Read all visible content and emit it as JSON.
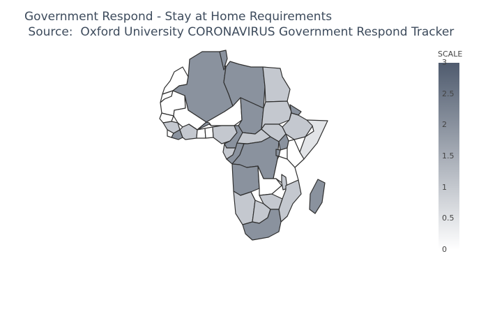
{
  "title": {
    "line1": "Government Respond - Stay at Home Requirements",
    "line2": " Source:  Oxford University CORONAVIRUS Government Respond Tracker"
  },
  "colorbar": {
    "title": "SCALE",
    "min": 0,
    "max": 3,
    "ticks": [
      "0",
      "0.5",
      "1",
      "1.5",
      "2",
      "2.5",
      "3"
    ],
    "color_low": "#ffffff",
    "color_high": "#4f5b6e"
  },
  "regions": [
    {
      "id": "morocco",
      "value": 0
    },
    {
      "id": "western-sahara",
      "value": 0
    },
    {
      "id": "algeria",
      "value": 2
    },
    {
      "id": "tunisia",
      "value": 2
    },
    {
      "id": "libya",
      "value": 2
    },
    {
      "id": "egypt",
      "value": 1
    },
    {
      "id": "mauritania",
      "value": 0
    },
    {
      "id": "mali",
      "value": 0
    },
    {
      "id": "niger",
      "value": 0
    },
    {
      "id": "chad",
      "value": 2
    },
    {
      "id": "sudan",
      "value": 1
    },
    {
      "id": "eritrea",
      "value": 2
    },
    {
      "id": "ethiopia",
      "value": 1
    },
    {
      "id": "somalia",
      "value": 0.5
    },
    {
      "id": "senegal",
      "value": 0
    },
    {
      "id": "guinea",
      "value": 1
    },
    {
      "id": "sierra-leone",
      "value": 0
    },
    {
      "id": "liberia",
      "value": 2
    },
    {
      "id": "cote-divoire",
      "value": 1
    },
    {
      "id": "burkina-faso",
      "value": 2
    },
    {
      "id": "ghana",
      "value": 0
    },
    {
      "id": "togo-benin",
      "value": 0
    },
    {
      "id": "nigeria",
      "value": 1
    },
    {
      "id": "cameroon",
      "value": 2
    },
    {
      "id": "car",
      "value": 1
    },
    {
      "id": "south-sudan",
      "value": 1
    },
    {
      "id": "gabon",
      "value": 1
    },
    {
      "id": "congo",
      "value": 2
    },
    {
      "id": "drc",
      "value": 2
    },
    {
      "id": "uganda",
      "value": 2
    },
    {
      "id": "kenya",
      "value": 0
    },
    {
      "id": "rwanda-burundi",
      "value": 2
    },
    {
      "id": "tanzania",
      "value": 0
    },
    {
      "id": "angola",
      "value": 2
    },
    {
      "id": "zambia",
      "value": 0
    },
    {
      "id": "malawi",
      "value": 1
    },
    {
      "id": "mozambique",
      "value": 1
    },
    {
      "id": "zimbabwe",
      "value": 1
    },
    {
      "id": "namibia",
      "value": 1
    },
    {
      "id": "botswana",
      "value": 1
    },
    {
      "id": "south-africa",
      "value": 2
    },
    {
      "id": "madagascar",
      "value": 2
    }
  ]
}
